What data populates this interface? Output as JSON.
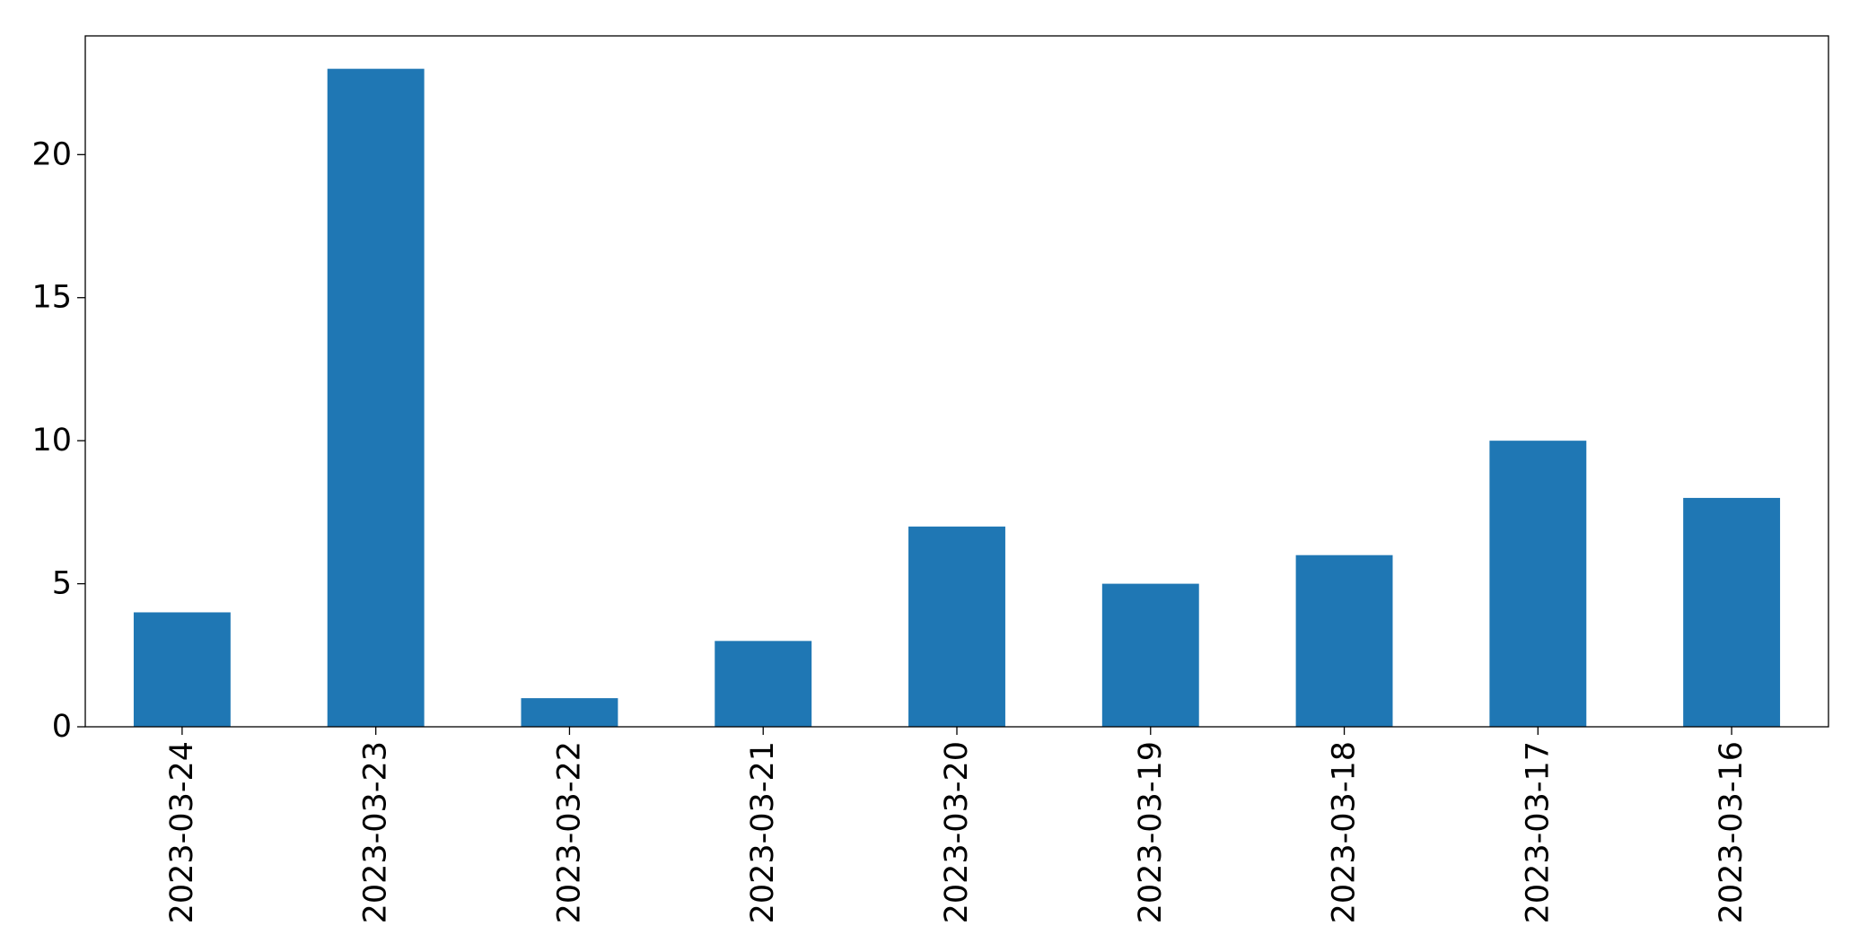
{
  "chart_data": {
    "type": "bar",
    "title": "",
    "xlabel": "",
    "ylabel": "",
    "categories": [
      "2023-03-24",
      "2023-03-23",
      "2023-03-22",
      "2023-03-21",
      "2023-03-20",
      "2023-03-19",
      "2023-03-18",
      "2023-03-17",
      "2023-03-16"
    ],
    "values": [
      4,
      23,
      1,
      3,
      7,
      5,
      6,
      10,
      8
    ],
    "ylim": [
      0,
      24.15
    ],
    "yticks": [
      0,
      5,
      10,
      15,
      20
    ],
    "grid": false,
    "legend": "none",
    "bar_color": "#1f77b4"
  }
}
